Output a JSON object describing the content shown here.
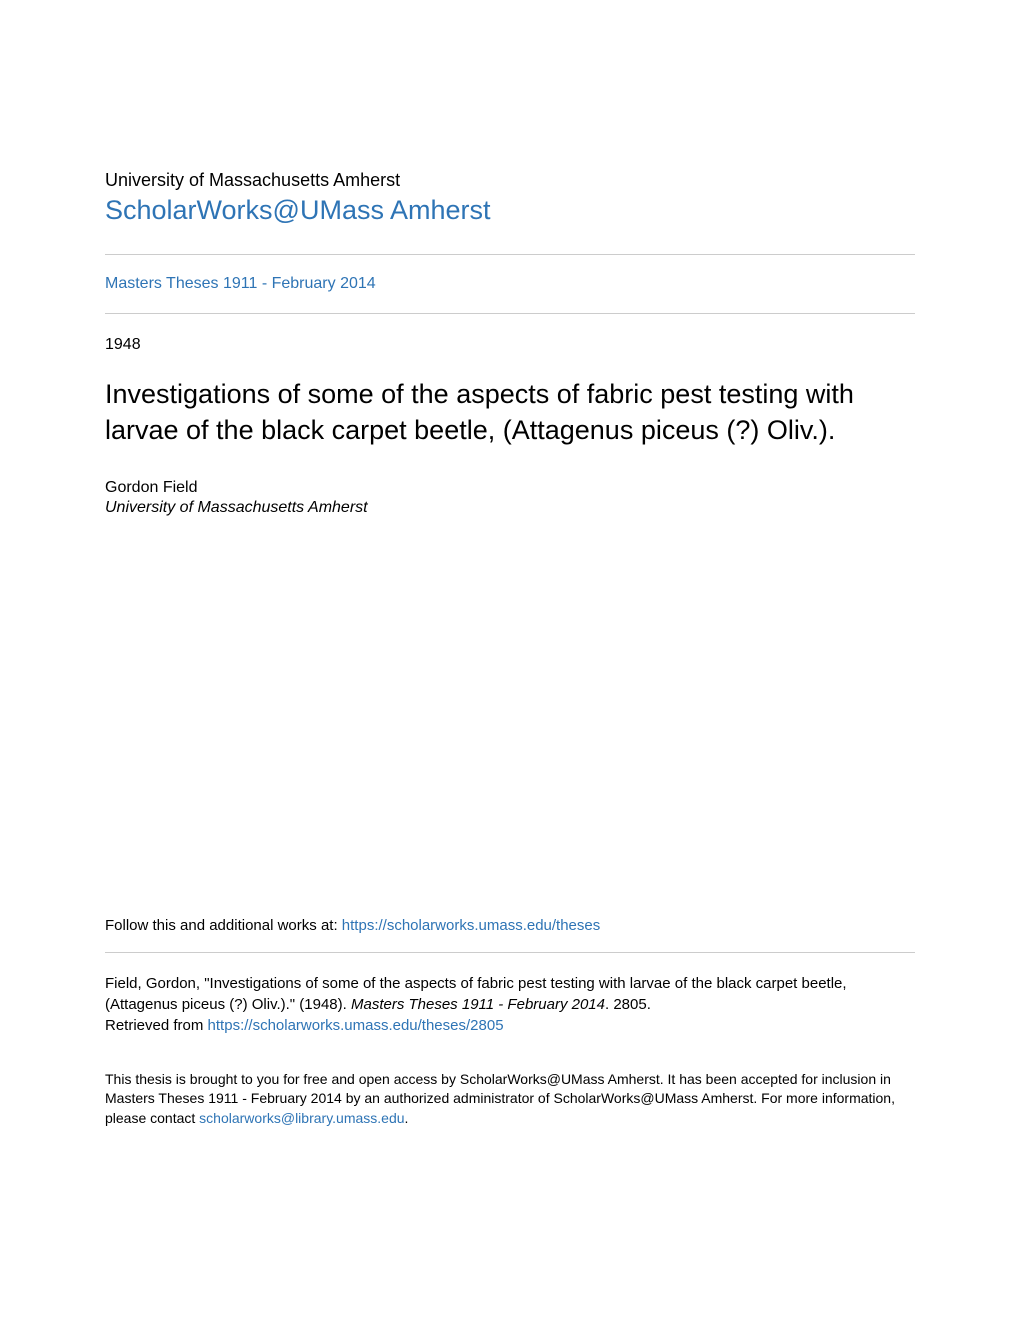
{
  "header": {
    "institution": "University of Massachusetts Amherst",
    "repository": "ScholarWorks@UMass Amherst",
    "collection": "Masters Theses 1911 - February 2014"
  },
  "meta": {
    "year": "1948"
  },
  "title": "Investigations of some of the aspects of fabric pest testing with larvae of the black carpet beetle, (Attagenus piceus (?) Oliv.).",
  "author": {
    "name": "Gordon Field",
    "affiliation": "University of Massachusetts Amherst"
  },
  "follow": {
    "prefix": "Follow this and additional works at: ",
    "url": "https://scholarworks.umass.edu/theses"
  },
  "citation": {
    "text_before_italic": "Field, Gordon, \"Investigations of some of the aspects of fabric pest testing with larvae of the black carpet beetle, (Attagenus piceus (?) Oliv.).\" (1948). ",
    "italic_part": "Masters Theses 1911 - February 2014",
    "text_after_italic": ". 2805.",
    "retrieved_prefix": "Retrieved from ",
    "retrieved_url": "https://scholarworks.umass.edu/theses/2805"
  },
  "footer": {
    "text_before_link": "This thesis is brought to you for free and open access by ScholarWorks@UMass Amherst. It has been accepted for inclusion in Masters Theses 1911 - February 2014 by an authorized administrator of ScholarWorks@UMass Amherst. For more information, please contact ",
    "link_text": "scholarworks@library.umass.edu",
    "text_after_link": "."
  },
  "colors": {
    "link": "#2e74b5",
    "divider": "#cccccc",
    "text": "#000000",
    "background": "#ffffff"
  }
}
